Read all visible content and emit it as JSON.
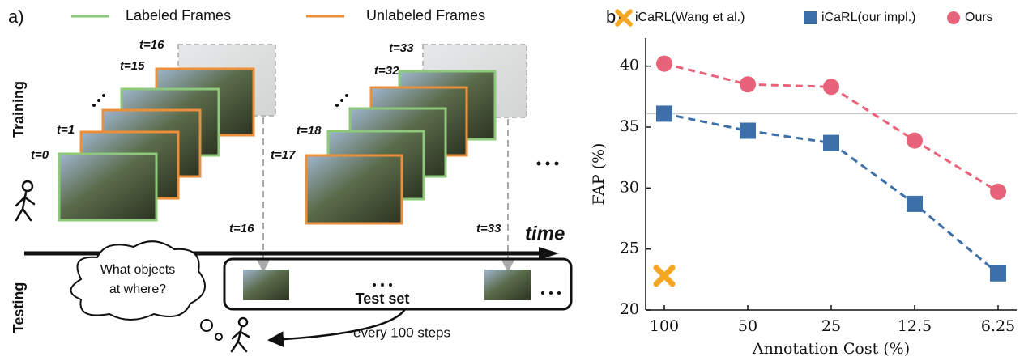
{
  "diagram": {
    "panel_label": "a)",
    "legend": [
      "Labeled Frames",
      "Unlabeled Frames"
    ],
    "row_labels": [
      "Training",
      "Testing"
    ],
    "frame_labels": [
      "t=0",
      "t=1",
      "t=15",
      "t=16",
      "t=17",
      "t=18",
      "t=32",
      "t=33"
    ],
    "test_labels": [
      "t=16",
      "t=33"
    ],
    "time_label": "time",
    "question": [
      "What objects",
      "at where?"
    ],
    "test_set": "Test set",
    "interval": "every 100 steps"
  },
  "chart_data": {
    "type": "line",
    "panel_label": "b)",
    "xlabel": "Annotation Cost (%)",
    "ylabel": "FAP (%)",
    "categories": [
      "100",
      "50",
      "25",
      "12.5",
      "6.25"
    ],
    "series": [
      {
        "name": "iCaRL(Wang et al.)",
        "color": "#f5a623",
        "marker": "x",
        "line": false,
        "values": [
          22.8,
          null,
          null,
          null,
          null
        ]
      },
      {
        "name": "iCaRL(our impl.)",
        "color": "#3d6fa8",
        "marker": "square",
        "line": true,
        "values": [
          36.1,
          34.7,
          33.7,
          28.7,
          23.0
        ]
      },
      {
        "name": "Ours",
        "color": "#e8637a",
        "marker": "circle",
        "line": true,
        "values": [
          40.2,
          38.5,
          38.3,
          33.9,
          29.7
        ]
      }
    ],
    "hline": 36.1,
    "ylim": [
      20,
      42.3
    ],
    "yticks": [
      20,
      25,
      30,
      35,
      40
    ]
  }
}
